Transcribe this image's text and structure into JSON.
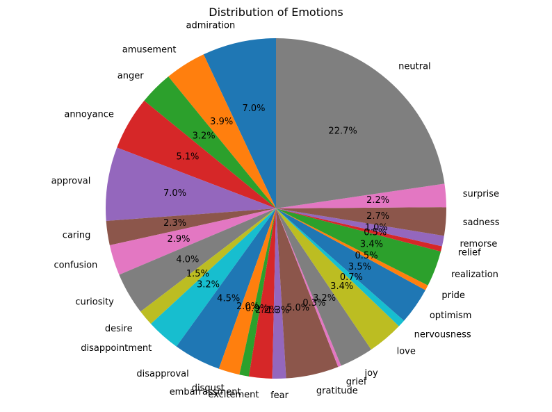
{
  "chart_data": {
    "type": "pie",
    "title": "Distribution of Emotions",
    "start_angle_deg": 90,
    "direction": "counterclockwise",
    "slices": [
      {
        "label": "admiration",
        "value": 7.0,
        "pct_label": "7.0%",
        "color": "#1f77b4"
      },
      {
        "label": "amusement",
        "value": 3.9,
        "pct_label": "3.9%",
        "color": "#ff7f0e"
      },
      {
        "label": "anger",
        "value": 3.2,
        "pct_label": "3.2%",
        "color": "#2ca02c"
      },
      {
        "label": "annoyance",
        "value": 5.1,
        "pct_label": "5.1%",
        "color": "#d62728"
      },
      {
        "label": "approval",
        "value": 7.0,
        "pct_label": "7.0%",
        "color": "#9467bd"
      },
      {
        "label": "caring",
        "value": 2.3,
        "pct_label": "2.3%",
        "color": "#8c564b"
      },
      {
        "label": "confusion",
        "value": 2.9,
        "pct_label": "2.9%",
        "color": "#e377c2"
      },
      {
        "label": "curiosity",
        "value": 4.0,
        "pct_label": "4.0%",
        "color": "#7f7f7f"
      },
      {
        "label": "desire",
        "value": 1.5,
        "pct_label": "1.5%",
        "color": "#bcbd22"
      },
      {
        "label": "disappointment",
        "value": 3.2,
        "pct_label": "3.2%",
        "color": "#17becf"
      },
      {
        "label": "disapproval",
        "value": 4.5,
        "pct_label": "4.5%",
        "color": "#1f77b4"
      },
      {
        "label": "disgust",
        "value": 2.0,
        "pct_label": "2.0%",
        "color": "#ff7f0e"
      },
      {
        "label": "embarrassment",
        "value": 0.9,
        "pct_label": "0.9%",
        "color": "#2ca02c"
      },
      {
        "label": "excitement",
        "value": 2.2,
        "pct_label": "2.2%",
        "color": "#d62728"
      },
      {
        "label": "fear",
        "value": 1.3,
        "pct_label": "1.3%",
        "color": "#9467bd"
      },
      {
        "label": "gratitude",
        "value": 5.0,
        "pct_label": "5.0%",
        "color": "#8c564b"
      },
      {
        "label": "grief",
        "value": 0.3,
        "pct_label": "0.3%",
        "color": "#e377c2"
      },
      {
        "label": "joy",
        "value": 3.2,
        "pct_label": "3.2%",
        "color": "#7f7f7f"
      },
      {
        "label": "love",
        "value": 3.4,
        "pct_label": "3.4%",
        "color": "#bcbd22"
      },
      {
        "label": "nervousness",
        "value": 0.7,
        "pct_label": "0.7%",
        "color": "#17becf"
      },
      {
        "label": "optimism",
        "value": 3.5,
        "pct_label": "3.5%",
        "color": "#1f77b4"
      },
      {
        "label": "pride",
        "value": 0.5,
        "pct_label": "0.5%",
        "color": "#ff7f0e"
      },
      {
        "label": "realization",
        "value": 3.4,
        "pct_label": "3.4%",
        "color": "#2ca02c"
      },
      {
        "label": "relief",
        "value": 0.5,
        "pct_label": "0.5%",
        "color": "#d62728"
      },
      {
        "label": "remorse",
        "value": 1.0,
        "pct_label": "1.0%",
        "color": "#9467bd"
      },
      {
        "label": "sadness",
        "value": 2.7,
        "pct_label": "2.7%",
        "color": "#8c564b"
      },
      {
        "label": "surprise",
        "value": 2.2,
        "pct_label": "2.2%",
        "color": "#e377c2"
      },
      {
        "label": "neutral",
        "value": 22.7,
        "pct_label": "22.7%",
        "color": "#7f7f7f"
      }
    ]
  }
}
